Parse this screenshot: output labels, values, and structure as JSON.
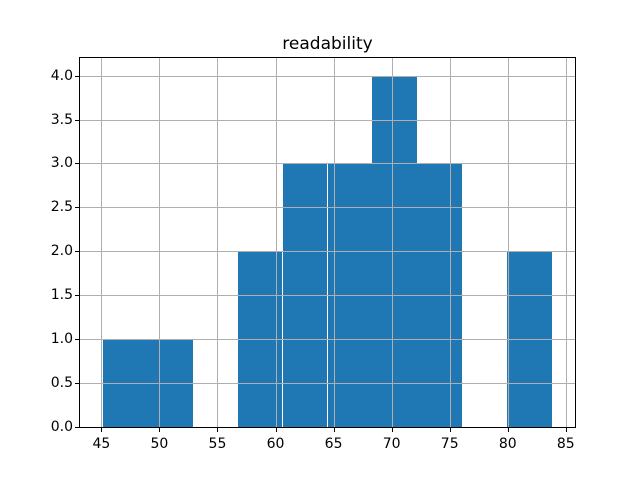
{
  "window": {
    "background": "#ffffff"
  },
  "colors": {
    "bar": "#1f77b4",
    "grid": "#b0b0b0",
    "axis": "#000000",
    "text": "#000000",
    "background": "#ffffff"
  },
  "chart_data": {
    "type": "bar",
    "subtype": "histogram",
    "title": "readability",
    "xlabel": "",
    "ylabel": "",
    "bin_edges": [
      45.1,
      48.975,
      52.85,
      56.725,
      60.6,
      64.475,
      68.35,
      72.225,
      76.1,
      79.975,
      83.85
    ],
    "counts": [
      1,
      1,
      0,
      2,
      3,
      3,
      4,
      3,
      0,
      2
    ],
    "xlim": [
      43.16,
      85.79
    ],
    "ylim": [
      0,
      4.2
    ],
    "xticks": [
      45,
      50,
      55,
      60,
      65,
      70,
      75,
      80,
      85
    ],
    "xtick_labels": [
      "45",
      "50",
      "55",
      "60",
      "65",
      "70",
      "75",
      "80",
      "85"
    ],
    "yticks": [
      0.0,
      0.5,
      1.0,
      1.5,
      2.0,
      2.5,
      3.0,
      3.5,
      4.0
    ],
    "ytick_labels": [
      "0.0",
      "0.5",
      "1.0",
      "1.5",
      "2.0",
      "2.5",
      "3.0",
      "3.5",
      "4.0"
    ],
    "grid": true,
    "grid_above_bars": true,
    "legend": "none"
  }
}
